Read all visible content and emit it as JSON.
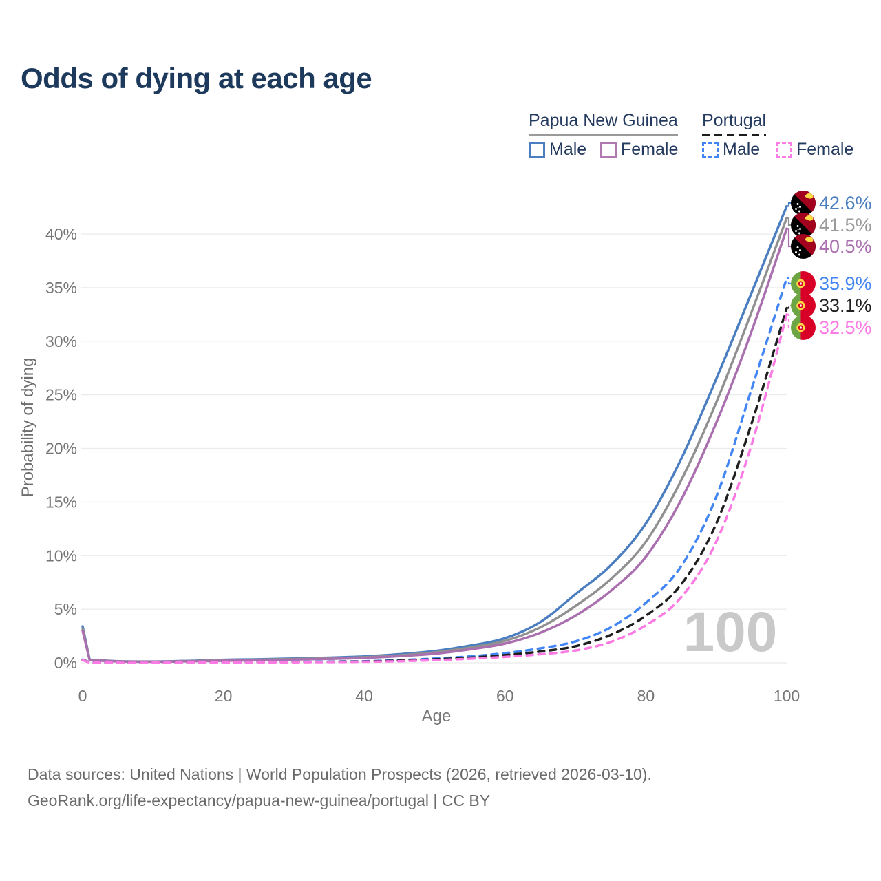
{
  "title": "Odds of dying at each age",
  "watermark_age": "100",
  "legend": {
    "groups": [
      {
        "country": "Papua New Guinea",
        "line_style": "solid",
        "underline_color": "#9a9a9a",
        "items": [
          {
            "label": "Male",
            "color": "#4a7ec0",
            "dashed": false
          },
          {
            "label": "Female",
            "color": "#b07ab0",
            "dashed": false
          }
        ]
      },
      {
        "country": "Portugal",
        "line_style": "dashed",
        "underline_color": "#1c1c1c",
        "items": [
          {
            "label": "Male",
            "color": "#4285f4",
            "dashed": true
          },
          {
            "label": "Female",
            "color": "#fb7ae3",
            "dashed": true
          }
        ]
      }
    ]
  },
  "footer": {
    "line1": "Data sources: United Nations | World Population Prospects (2026, retrieved 2026-03-10).",
    "line2": "GeoRank.org/life-expectancy/papua-new-guinea/portugal | CC BY"
  },
  "chart_data": {
    "type": "line",
    "title": "Odds of dying at each age",
    "xlabel": "Age",
    "ylabel": "Probability of dying",
    "xlim": [
      0,
      100
    ],
    "ylim_percent": [
      0,
      45
    ],
    "x_ticks": [
      0,
      20,
      40,
      60,
      80,
      100
    ],
    "y_tick_values": [
      0,
      5,
      10,
      15,
      20,
      25,
      30,
      35,
      40
    ],
    "y_tick_suffix": "%",
    "grid": true,
    "legend_position": "top-right",
    "ages": [
      0,
      1,
      5,
      10,
      15,
      20,
      25,
      30,
      35,
      40,
      45,
      50,
      55,
      60,
      65,
      70,
      75,
      80,
      85,
      90,
      95,
      100
    ],
    "series": [
      {
        "id": "png-male",
        "name": "Papua New Guinea — Male",
        "flag": "png",
        "color": "#4a7ec0",
        "label_color": "#4a7ec0",
        "dashed": false,
        "end_label": "42.6%",
        "end_value": 42.6,
        "values": [
          3.4,
          0.3,
          0.15,
          0.12,
          0.18,
          0.28,
          0.33,
          0.4,
          0.48,
          0.6,
          0.8,
          1.1,
          1.6,
          2.3,
          3.8,
          6.4,
          9.1,
          13.0,
          19.0,
          26.5,
          34.5,
          42.6
        ]
      },
      {
        "id": "png-all",
        "name": "Papua New Guinea — Both sexes",
        "flag": "png",
        "color": "#909090",
        "label_color": "#9a9a9a",
        "dashed": false,
        "end_label": "41.5%",
        "end_value": 41.5,
        "values": [
          3.2,
          0.28,
          0.14,
          0.11,
          0.16,
          0.24,
          0.29,
          0.35,
          0.42,
          0.52,
          0.7,
          0.97,
          1.42,
          2.05,
          3.3,
          5.3,
          7.8,
          11.3,
          17.0,
          24.3,
          32.7,
          41.5
        ]
      },
      {
        "id": "png-female",
        "name": "Papua New Guinea — Female",
        "flag": "png",
        "color": "#aa6fae",
        "label_color": "#aa6fae",
        "dashed": false,
        "end_label": "40.5%",
        "end_value": 40.5,
        "values": [
          3.0,
          0.26,
          0.13,
          0.1,
          0.14,
          0.19,
          0.24,
          0.3,
          0.37,
          0.46,
          0.62,
          0.85,
          1.25,
          1.8,
          2.8,
          4.4,
          6.7,
          9.9,
          15.2,
          22.4,
          30.9,
          40.5
        ]
      },
      {
        "id": "pt-male",
        "name": "Portugal — Male",
        "flag": "pt",
        "color": "#4285f4",
        "label_color": "#4285f4",
        "dashed": true,
        "end_label": "35.9%",
        "end_value": 35.9,
        "values": [
          0.3,
          0.03,
          0.01,
          0.01,
          0.04,
          0.07,
          0.08,
          0.09,
          0.11,
          0.15,
          0.25,
          0.4,
          0.6,
          0.9,
          1.35,
          2.0,
          3.3,
          5.6,
          9.0,
          15.5,
          25.5,
          35.9
        ]
      },
      {
        "id": "pt-all",
        "name": "Portugal — Both sexes",
        "flag": "pt",
        "color": "#1f1f1f",
        "label_color": "#1f1f1f",
        "dashed": true,
        "end_label": "33.1%",
        "end_value": 33.1,
        "values": [
          0.28,
          0.03,
          0.01,
          0.01,
          0.03,
          0.05,
          0.06,
          0.07,
          0.09,
          0.12,
          0.2,
          0.32,
          0.48,
          0.72,
          1.05,
          1.55,
          2.6,
          4.4,
          7.3,
          13.0,
          22.3,
          33.1
        ]
      },
      {
        "id": "pt-female",
        "name": "Portugal — Female",
        "flag": "pt",
        "color": "#fb7ae3",
        "label_color": "#fb7ae3",
        "dashed": true,
        "end_label": "32.5%",
        "end_value": 32.5,
        "values": [
          0.25,
          0.02,
          0.01,
          0.01,
          0.02,
          0.03,
          0.04,
          0.05,
          0.07,
          0.1,
          0.15,
          0.25,
          0.38,
          0.55,
          0.8,
          1.15,
          1.95,
          3.5,
          6.1,
          11.3,
          20.3,
          32.5
        ]
      }
    ]
  }
}
